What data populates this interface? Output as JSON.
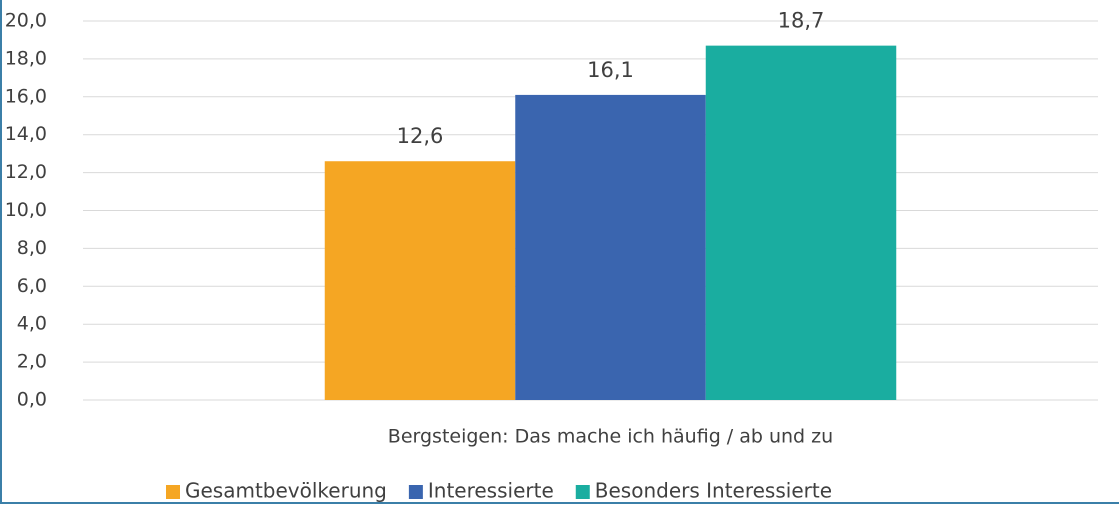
{
  "chart_data": {
    "type": "bar",
    "categories": [
      "Bergsteigen: Das mache ich häufig / ab und zu"
    ],
    "series": [
      {
        "name": "Gesamtbevölkerung",
        "color": "#f5a623",
        "values": [
          12.6
        ],
        "value_labels": [
          "12,6"
        ]
      },
      {
        "name": "Interessierte",
        "color": "#3a65af",
        "values": [
          16.1
        ],
        "value_labels": [
          "16,1"
        ]
      },
      {
        "name": "Besonders Interessierte",
        "color": "#1aada0",
        "values": [
          18.7
        ],
        "value_labels": [
          "18,7"
        ]
      }
    ],
    "ylim": [
      0,
      20
    ],
    "yticks": [
      {
        "value": 0,
        "label": "0,0"
      },
      {
        "value": 2,
        "label": "2,0"
      },
      {
        "value": 4,
        "label": "4,0"
      },
      {
        "value": 6,
        "label": "6,0"
      },
      {
        "value": 8,
        "label": "8,0"
      },
      {
        "value": 10,
        "label": "10,0"
      },
      {
        "value": 12,
        "label": "12,0"
      },
      {
        "value": 14,
        "label": "14,0"
      },
      {
        "value": 16,
        "label": "16,0"
      },
      {
        "value": 18,
        "label": "18,0"
      },
      {
        "value": 20,
        "label": "20,0"
      }
    ],
    "grid": true,
    "legend": "bottom"
  }
}
